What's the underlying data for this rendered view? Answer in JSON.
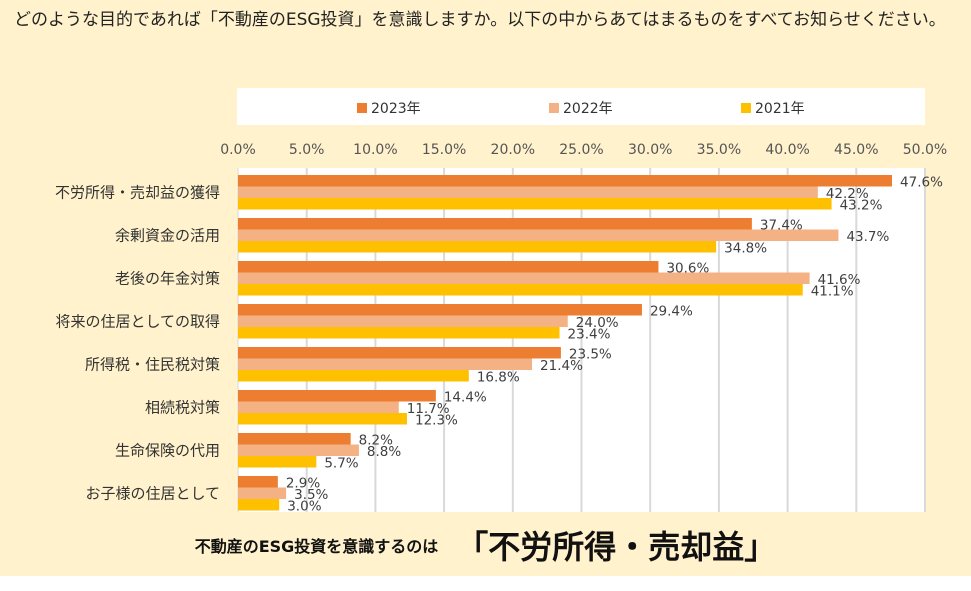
{
  "question": "どのような目的であれば「不動産のESG投資」を意識しますか。以下の中からあてはまるものをすべてお知らせください。",
  "summary": {
    "lead": "不動産のESG投資を意識するのは",
    "highlight": "「不労所得・売却益」"
  },
  "chart_data": {
    "type": "bar",
    "orientation": "horizontal",
    "categories": [
      "不労所得・売却益の獲得",
      "余剰資金の活用",
      "老後の年金対策",
      "将来の住居としての取得",
      "所得税・住民税対策",
      "相続税対策",
      "生命保険の代用",
      "お子様の住居として"
    ],
    "series": [
      {
        "name": "2023年",
        "color": "#ed7d31",
        "values": [
          47.6,
          37.4,
          30.6,
          29.4,
          23.5,
          14.4,
          8.2,
          2.9
        ],
        "labels": [
          "47.6%",
          "37.4%",
          "30.6%",
          "29.4%",
          "23.5%",
          "14.4%",
          "8.2%",
          "2.9%"
        ]
      },
      {
        "name": "2022年",
        "color": "#f4b183",
        "values": [
          42.2,
          43.7,
          41.6,
          24.0,
          21.4,
          11.7,
          8.8,
          3.5
        ],
        "labels": [
          "42.2%",
          "43.7%",
          "41.6%",
          "24.0%",
          "21.4%",
          "11.7%",
          "8.8%",
          "3.5%"
        ]
      },
      {
        "name": "2021年",
        "color": "#ffc000",
        "values": [
          43.2,
          34.8,
          41.1,
          23.4,
          16.8,
          12.3,
          5.7,
          3.0
        ],
        "labels": [
          "43.2%",
          "34.8%",
          "41.1%",
          "23.4%",
          "16.8%",
          "12.3%",
          "5.7%",
          "3.0%"
        ]
      }
    ],
    "xlim": [
      0,
      50
    ],
    "xticks": [
      "0.0%",
      "5.0%",
      "10.0%",
      "15.0%",
      "20.0%",
      "25.0%",
      "30.0%",
      "35.0%",
      "40.0%",
      "45.0%",
      "50.0%"
    ],
    "grid": true,
    "legend": "top"
  }
}
